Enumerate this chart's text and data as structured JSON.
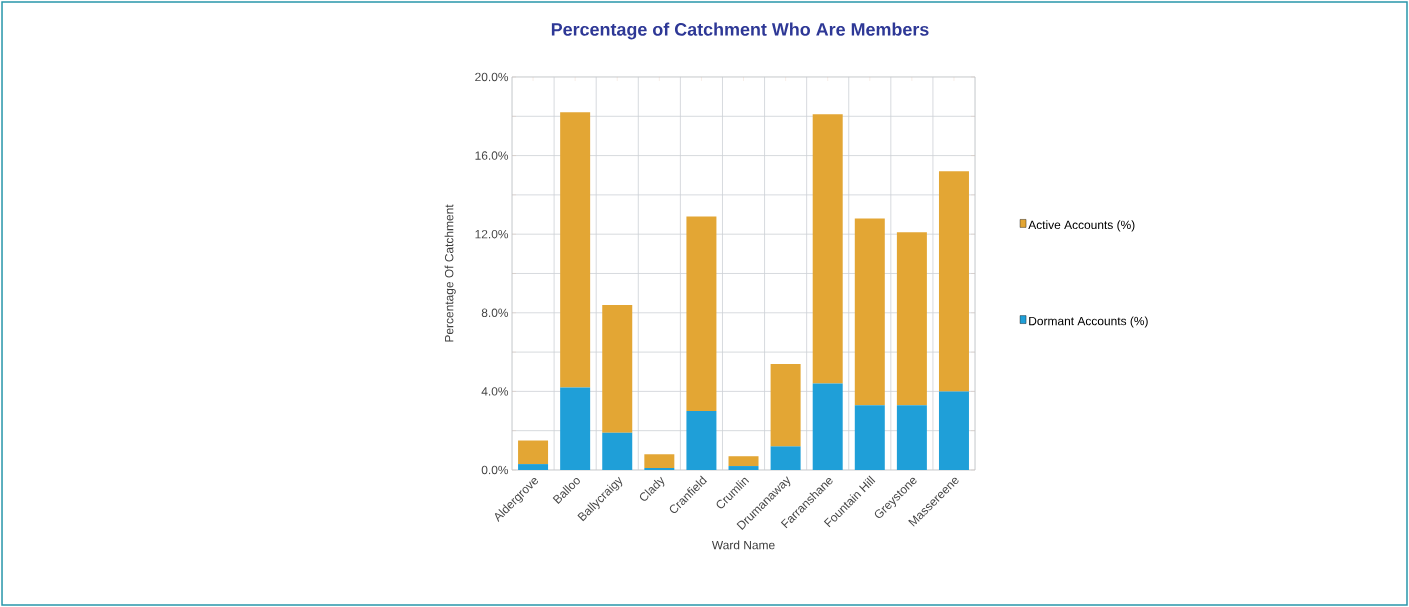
{
  "chart_data": {
    "type": "bar",
    "title": "Percentage of Catchment Who Are Members",
    "xlabel": "Ward Name",
    "ylabel": "Percentage Of Catchment",
    "categories": [
      "Aldergrove",
      "Balloo",
      "Ballycraigy",
      "Clady",
      "Cranfield",
      "Crumlin",
      "Drumanaway",
      "Farranshane",
      "Fountain Hill",
      "Greystone",
      "Massereene"
    ],
    "series": [
      {
        "name": "Dormant Accounts (%)",
        "color": "#1f9fd8",
        "values": [
          0.3,
          4.2,
          1.9,
          0.1,
          3.0,
          0.2,
          1.2,
          4.4,
          3.3,
          3.3,
          4.0
        ]
      },
      {
        "name": "Active Accounts (%)",
        "color": "#e3a634",
        "values": [
          1.2,
          14.0,
          6.5,
          0.7,
          9.9,
          0.5,
          4.2,
          13.7,
          9.5,
          8.8,
          11.2
        ]
      }
    ],
    "stacked": true,
    "ylim": [
      0,
      20
    ],
    "yticks": [
      {
        "value": 0,
        "label": "0.0%"
      },
      {
        "value": 2,
        "label": null
      },
      {
        "value": 4,
        "label": "4.0%"
      },
      {
        "value": 6,
        "label": null
      },
      {
        "value": 8,
        "label": "8.0%"
      },
      {
        "value": 10,
        "label": null
      },
      {
        "value": 12,
        "label": "12.0%"
      },
      {
        "value": 14,
        "label": null
      },
      {
        "value": 16,
        "label": "16.0%"
      },
      {
        "value": 18,
        "label": null
      },
      {
        "value": 20,
        "label": "20.0%"
      }
    ],
    "grid": true,
    "legend": "right"
  }
}
